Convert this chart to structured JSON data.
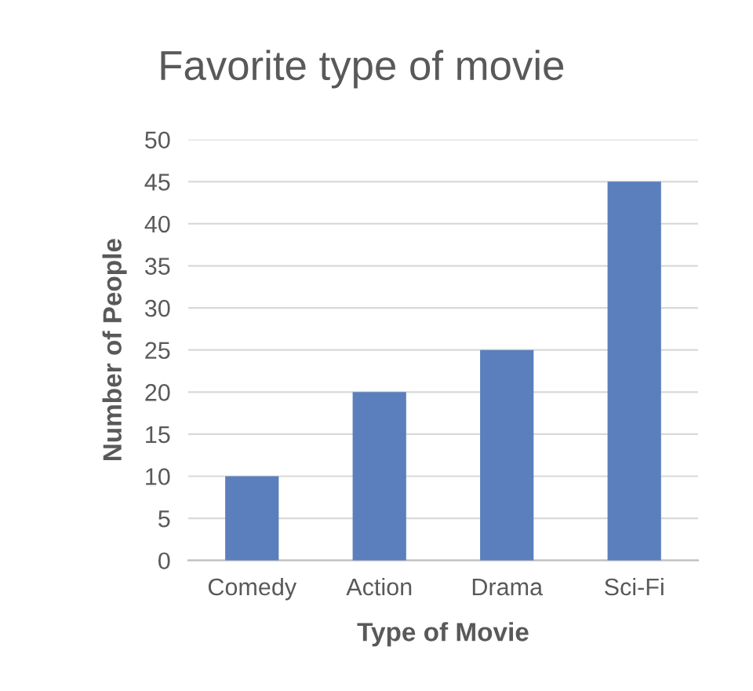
{
  "chart_data": {
    "type": "bar",
    "title": "Favorite type of movie",
    "xlabel": "Type of Movie",
    "ylabel": "Number of People",
    "categories": [
      "Comedy",
      "Action",
      "Drama",
      "Sci-Fi"
    ],
    "values": [
      10,
      20,
      25,
      45
    ],
    "color": "#5b7fbd",
    "ylim": [
      0,
      50
    ],
    "yticks": [
      0,
      5,
      10,
      15,
      20,
      25,
      30,
      35,
      40,
      45,
      50
    ],
    "grid": "y"
  }
}
